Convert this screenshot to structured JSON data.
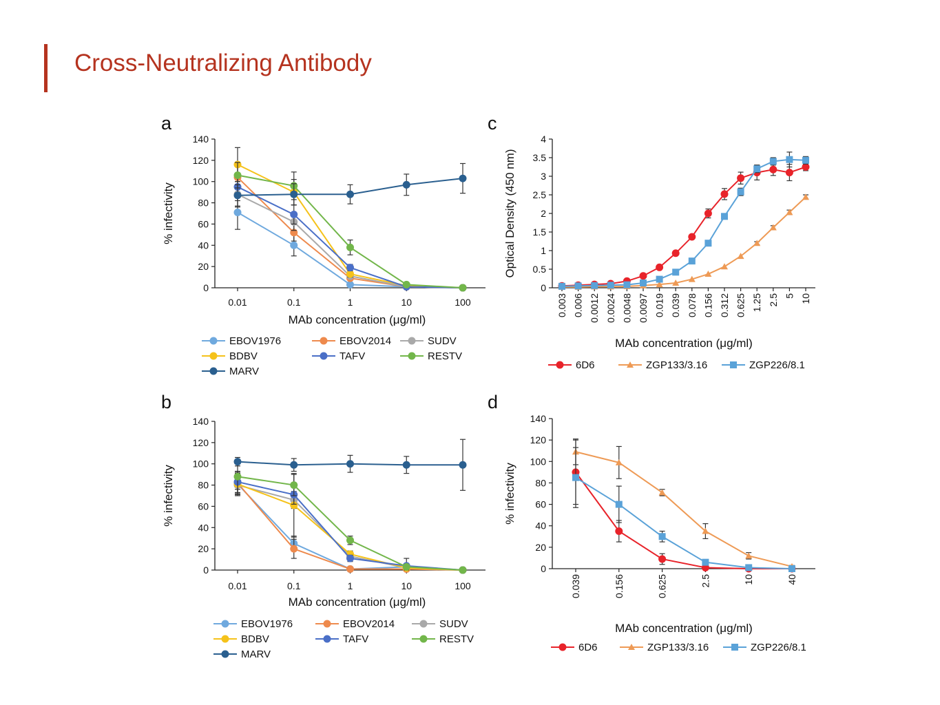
{
  "slide": {
    "title": "Cross-Neutralizing Antibody"
  },
  "colors": {
    "EBOV1976": "#6fa9de",
    "EBOV2014": "#ee8a4d",
    "SUDV": "#a9a9a9",
    "BDBV": "#f5c21a",
    "TAFV": "#4a6fc7",
    "RESTV": "#72b64a",
    "MARV": "#2a5f8f",
    "6D6": "#e8232a",
    "ZGP133/3.16": "#ee9a55",
    "ZGP226/8.1": "#5aa2d8",
    "title": "#b5331f"
  },
  "chart_data": [
    {
      "panel": "a",
      "type": "line",
      "x": [
        "0.01",
        "0.1",
        "1",
        "10",
        "100"
      ],
      "ylabel": "% infectivity",
      "xlabel": "MAb concentration (μg/ml)",
      "ylim": [
        0,
        140
      ],
      "yticks": [
        0,
        20,
        40,
        60,
        80,
        100,
        120,
        140
      ],
      "legend": {
        "columns": 3
      },
      "series": [
        {
          "name": "EBOV1976",
          "values": [
            71,
            40,
            3,
            1,
            0
          ],
          "errors": [
            16,
            10,
            2,
            1,
            1
          ]
        },
        {
          "name": "EBOV2014",
          "values": [
            104,
            52,
            9,
            1,
            0
          ],
          "errors": [
            14,
            8,
            2,
            1,
            1
          ]
        },
        {
          "name": "SUDV",
          "values": [
            88,
            62,
            11,
            1,
            0
          ],
          "errors": [
            12,
            8,
            2,
            1,
            1
          ]
        },
        {
          "name": "BDBV",
          "values": [
            116,
            90,
            13,
            2,
            0
          ],
          "errors": [
            16,
            12,
            3,
            1,
            1
          ]
        },
        {
          "name": "TAFV",
          "values": [
            95,
            69,
            19,
            1,
            0
          ],
          "errors": [
            13,
            9,
            3,
            1,
            1
          ]
        },
        {
          "name": "RESTV",
          "values": [
            106,
            96,
            38,
            3,
            0
          ],
          "errors": [
            12,
            13,
            7,
            1,
            1
          ]
        },
        {
          "name": "MARV",
          "values": [
            87,
            88,
            88,
            97,
            103
          ],
          "errors": [
            10,
            10,
            9,
            10,
            14
          ]
        }
      ]
    },
    {
      "panel": "b",
      "type": "line",
      "x": [
        "0.01",
        "0.1",
        "1",
        "10",
        "100"
      ],
      "ylabel": "% infectivity",
      "xlabel": "MAb concentration (μg/ml)",
      "ylim": [
        0,
        140
      ],
      "yticks": [
        0,
        20,
        40,
        60,
        80,
        100,
        120,
        140
      ],
      "legend": {
        "columns": 3
      },
      "series": [
        {
          "name": "EBOV1976",
          "values": [
            81,
            25,
            1,
            3,
            0
          ],
          "errors": [
            10,
            7,
            1,
            2,
            1
          ]
        },
        {
          "name": "EBOV2014",
          "values": [
            82,
            20,
            1,
            1,
            0
          ],
          "errors": [
            10,
            9,
            1,
            1,
            1
          ]
        },
        {
          "name": "SUDV",
          "values": [
            80,
            66,
            13,
            2,
            0
          ],
          "errors": [
            10,
            8,
            3,
            1,
            1
          ]
        },
        {
          "name": "BDBV",
          "values": [
            81,
            61,
            15,
            2,
            0
          ],
          "errors": [
            10,
            30,
            3,
            1,
            1
          ]
        },
        {
          "name": "TAFV",
          "values": [
            83,
            71,
            11,
            4,
            0
          ],
          "errors": [
            10,
            9,
            3,
            7,
            1
          ]
        },
        {
          "name": "RESTV",
          "values": [
            88,
            80,
            28,
            3,
            0
          ],
          "errors": [
            12,
            10,
            4,
            1,
            1
          ]
        },
        {
          "name": "MARV",
          "values": [
            102,
            99,
            100,
            99,
            99
          ],
          "errors": [
            4,
            6,
            8,
            8,
            24
          ]
        }
      ]
    },
    {
      "panel": "c",
      "type": "line",
      "x": [
        "0.003",
        "0.006",
        "0.0012",
        "0.0024",
        "0.0048",
        "0.0097",
        "0.019",
        "0.039",
        "0.078",
        "0.156",
        "0.312",
        "0.625",
        "1.25",
        "2.5",
        "5",
        "10"
      ],
      "ylabel": "Optical Density (450 nm)",
      "xlabel": "MAb concentration (μg/ml)",
      "ylim": [
        0,
        4
      ],
      "yticks": [
        "0",
        "0.5",
        "1",
        "1.5",
        "2",
        "2.5",
        "3",
        "3.5",
        "4"
      ],
      "legend": {
        "columns": 3
      },
      "series": [
        {
          "name": "6D6",
          "marker": "circle",
          "values": [
            0.05,
            0.07,
            0.09,
            0.11,
            0.18,
            0.32,
            0.55,
            0.93,
            1.37,
            2.0,
            2.52,
            2.95,
            3.1,
            3.18,
            3.1,
            3.25
          ],
          "errors": [
            0,
            0,
            0,
            0,
            0,
            0,
            0,
            0,
            0.05,
            0.12,
            0.15,
            0.16,
            0.2,
            0.16,
            0.22,
            0.1
          ]
        },
        {
          "name": "ZGP133/3.16",
          "marker": "triangle",
          "values": [
            0.02,
            0.02,
            0.03,
            0.03,
            0.04,
            0.06,
            0.09,
            0.13,
            0.23,
            0.37,
            0.57,
            0.85,
            1.2,
            1.62,
            2.03,
            2.44
          ],
          "errors": [
            0,
            0,
            0,
            0,
            0,
            0,
            0,
            0,
            0,
            0,
            0,
            0,
            0.04,
            0.05,
            0.06,
            0.06
          ]
        },
        {
          "name": "ZGP226/8.1",
          "marker": "square",
          "values": [
            0.04,
            0.05,
            0.06,
            0.07,
            0.08,
            0.13,
            0.23,
            0.42,
            0.72,
            1.2,
            1.92,
            2.58,
            3.2,
            3.4,
            3.45,
            3.43
          ],
          "errors": [
            0,
            0,
            0,
            0,
            0,
            0,
            0,
            0,
            0,
            0,
            0,
            0.1,
            0.1,
            0.1,
            0.2,
            0.1
          ]
        }
      ]
    },
    {
      "panel": "d",
      "type": "line",
      "x": [
        "0.039",
        "0.156",
        "0.625",
        "2.5",
        "10",
        "40"
      ],
      "ylabel": "% infectivity",
      "xlabel": "MAb concentration (μg/ml)",
      "ylim": [
        0,
        140
      ],
      "yticks": [
        0,
        20,
        40,
        60,
        80,
        100,
        120,
        140
      ],
      "legend": {
        "columns": 3
      },
      "series": [
        {
          "name": "6D6",
          "marker": "circle",
          "values": [
            90,
            35,
            9,
            1,
            0,
            0
          ],
          "errors": [
            30,
            10,
            5,
            1,
            1,
            1
          ]
        },
        {
          "name": "ZGP133/3.16",
          "marker": "triangle",
          "values": [
            109,
            99,
            71,
            35,
            12,
            2
          ],
          "errors": [
            12,
            15,
            3,
            7,
            3,
            1
          ]
        },
        {
          "name": "ZGP226/8.1",
          "marker": "square",
          "values": [
            85,
            60,
            30,
            6,
            1,
            0
          ],
          "errors": [
            28,
            17,
            5,
            2,
            1,
            1
          ]
        }
      ]
    }
  ]
}
